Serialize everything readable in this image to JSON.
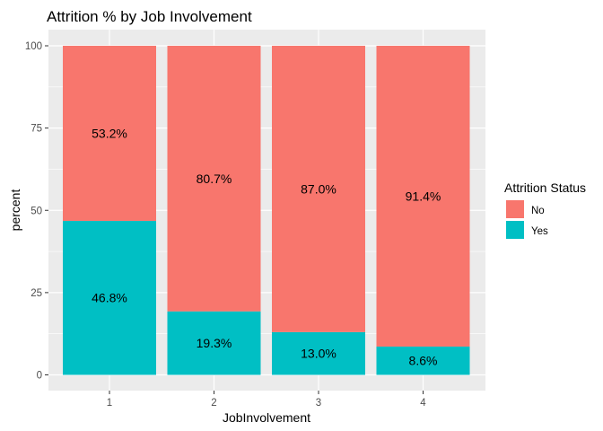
{
  "chart_data": {
    "type": "bar",
    "stacked": true,
    "title": "Attrition % by Job Involvement",
    "xlabel": "JobInvolvement",
    "ylabel": "percent",
    "categories": [
      "1",
      "2",
      "3",
      "4"
    ],
    "ylim": [
      0,
      100
    ],
    "yticks": [
      0,
      25,
      50,
      75,
      100
    ],
    "grid": true,
    "legend": {
      "title": "Attrition Status",
      "position": "right"
    },
    "series": [
      {
        "name": "Yes",
        "color": "#00BFC4",
        "values": [
          46.8,
          19.3,
          13.0,
          8.6
        ],
        "labels": [
          "46.8%",
          "19.3%",
          "13.0%",
          "8.6%"
        ]
      },
      {
        "name": "No",
        "color": "#F8766D",
        "values": [
          53.2,
          80.7,
          87.0,
          91.4
        ],
        "labels": [
          "53.2%",
          "80.7%",
          "87.0%",
          "91.4%"
        ]
      }
    ]
  }
}
